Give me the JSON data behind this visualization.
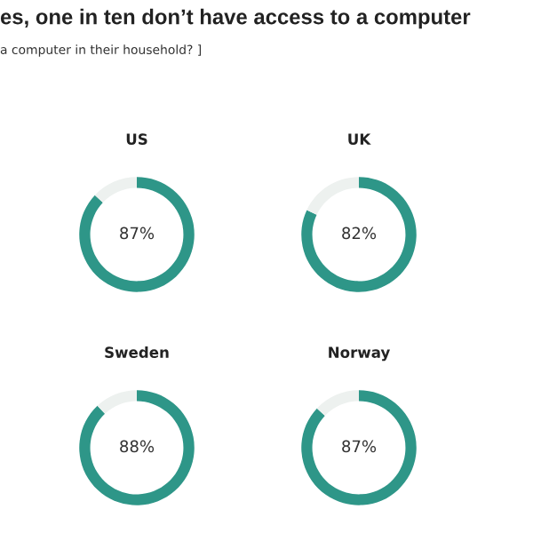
{
  "chart_data": [
    {
      "type": "donut",
      "title": "US",
      "subtitle": "es, one in ten don’t have access to a computer",
      "annotations": [
        "a computer in their household? ]"
      ],
      "categories": [
        null,
        null
      ],
      "values": [
        87,
        13
      ],
      "colors": [
        "#2e9688",
        "#edf1ef"
      ],
      "value_labels": [
        "87%",
        null
      ]
    },
    {
      "type": "donut",
      "title": "UK",
      "categories": [
        null,
        null
      ],
      "values": [
        82,
        18
      ],
      "colors": [
        "#2e9688",
        "#edf1ef"
      ],
      "value_labels": [
        "82%",
        null
      ]
    },
    {
      "type": "donut",
      "title": "Sweden",
      "categories": [
        null,
        null
      ],
      "values": [
        88,
        12
      ],
      "colors": [
        "#2e9688",
        "#edf1ef"
      ],
      "value_labels": [
        "88%",
        null
      ]
    },
    {
      "type": "donut",
      "title": "Norway",
      "categories": [
        null,
        null
      ],
      "values": [
        87,
        13
      ],
      "colors": [
        "#2e9688",
        "#edf1ef"
      ],
      "value_labels": [
        "87%",
        null
      ]
    }
  ]
}
